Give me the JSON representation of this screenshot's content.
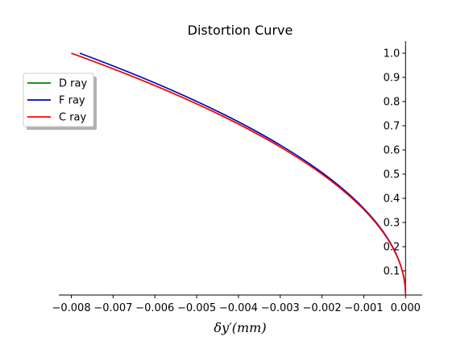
{
  "chart_data": {
    "type": "line",
    "title": "Distortion Curve",
    "xlabel": "δy′(mm)",
    "ylabel": "",
    "xlim": [
      -0.0083,
      0.0004
    ],
    "ylim": [
      0.0,
      1.05
    ],
    "x_ticks": [
      -0.008,
      -0.007,
      -0.006,
      -0.005,
      -0.004,
      -0.003,
      -0.002,
      -0.001,
      0.0
    ],
    "x_tick_labels": [
      "−0.008",
      "−0.007",
      "−0.006",
      "−0.005",
      "−0.004",
      "−0.003",
      "−0.002",
      "−0.001",
      "0.000"
    ],
    "y_ticks": [
      0.1,
      0.2,
      0.3,
      0.4,
      0.5,
      0.6,
      0.7,
      0.8,
      0.9,
      1.0
    ],
    "y_tick_labels": [
      "0.1",
      "0.2",
      "0.3",
      "0.4",
      "0.5",
      "0.6",
      "0.7",
      "0.8",
      "0.9",
      "1.0"
    ],
    "grid": false,
    "legend_position": "upper-left",
    "y": [
      0.0,
      0.1,
      0.2,
      0.3,
      0.4,
      0.5,
      0.6,
      0.7,
      0.8,
      0.9,
      1.0
    ],
    "series": [
      {
        "name": "D ray",
        "color": "#008000",
        "x": [
          0.0,
          -8e-05,
          -0.00032,
          -0.00072,
          -0.00128,
          -0.002,
          -0.00288,
          -0.00392,
          -0.00512,
          -0.00648,
          -0.008
        ]
      },
      {
        "name": "F ray",
        "color": "#0000bf",
        "x": [
          0.0,
          -7.8e-05,
          -0.000312,
          -0.000702,
          -0.001248,
          -0.00195,
          -0.002808,
          -0.003822,
          -0.004992,
          -0.006318,
          -0.0078
        ]
      },
      {
        "name": "C ray",
        "color": "#ff0000",
        "x": [
          0.0,
          -8e-05,
          -0.00032,
          -0.00072,
          -0.00128,
          -0.002,
          -0.00288,
          -0.00392,
          -0.00512,
          -0.00648,
          -0.008
        ]
      }
    ]
  }
}
